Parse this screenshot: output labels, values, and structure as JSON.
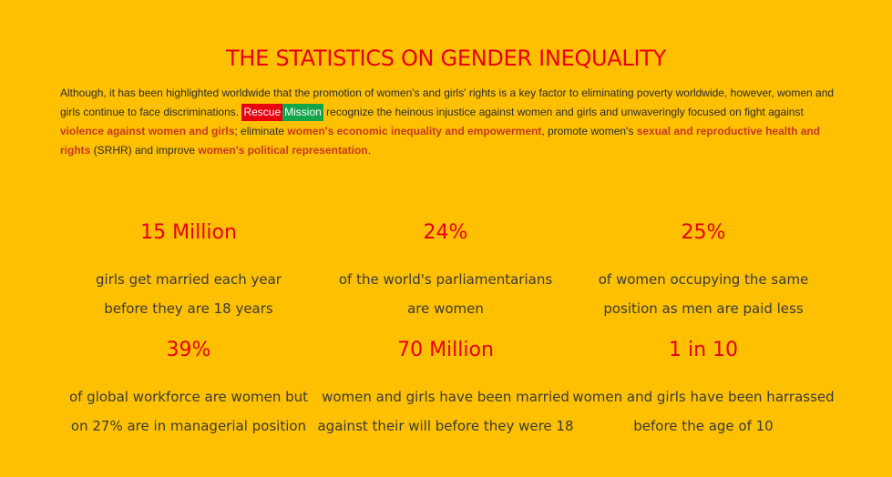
{
  "title": "THE STATISTICS ON GENDER INEQUALITY",
  "intro": {
    "t1": "Although, it has been highlighted worldwide that the promotion of women's and girls' rights is a key factor to eliminating poverty worldwide, however, women and girls continue to face discriminations. ",
    "badge_rescue": "Rescue",
    "badge_mission": "Mission",
    "t2": " recognize the heinous injustice against women and girls and unwaveringly focused on fight against ",
    "h1": "violence against women and girls",
    "t3": "; eliminate ",
    "h2": "women's economic inequality and empowerment",
    "t4": ", promote women's ",
    "h3": "sexual and reproductive health and rights",
    "t5": " (SRHR) and improve ",
    "h4": "women's political representation",
    "t6": "."
  },
  "colors": {
    "background": "#ffc000",
    "accent_red": "#e8000f",
    "highlight_text": "#c8371c",
    "badge_green": "#13a54a"
  },
  "stats": [
    {
      "value": "15 Million",
      "line1": "girls get married each year",
      "line2": "before they are 18 years"
    },
    {
      "value": "24%",
      "line1": "of the world's parliamentarians",
      "line2": "are women"
    },
    {
      "value": "25%",
      "line1": "of women occupying the same",
      "line2": "position as men are paid less"
    },
    {
      "value": "39%",
      "line1": "of global workforce are women but",
      "line2": "on 27% are in managerial position"
    },
    {
      "value": "70 Million",
      "line1": "women and girls have been married",
      "line2": "against their will before they were 18"
    },
    {
      "value": "1 in 10",
      "line1": "women and girls have been harrassed",
      "line2": "before the age of 10"
    }
  ]
}
